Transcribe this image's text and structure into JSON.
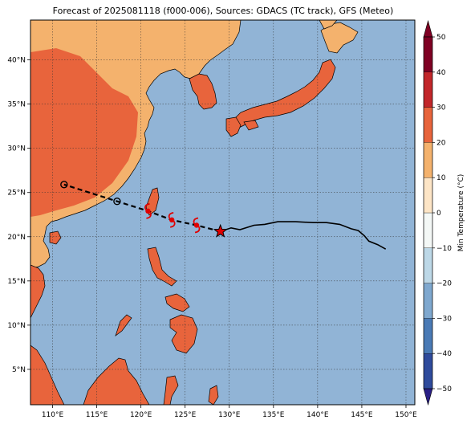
{
  "title": "Forecast of 2025081118 (f000-006), Sources: GDACS (TC track), GFS (Meteo)",
  "map": {
    "lon_range": [
      107.5,
      151.0
    ],
    "lat_range": [
      1.0,
      44.5
    ],
    "lon_ticks": [
      "110°E",
      "115°E",
      "120°E",
      "125°E",
      "130°E",
      "135°E",
      "140°E",
      "145°E",
      "150°E"
    ],
    "lat_ticks": [
      "5°N",
      "10°N",
      "15°N",
      "20°N",
      "25°N",
      "30°N",
      "35°N",
      "40°N"
    ],
    "ocean_color": "#91b4d6",
    "gridlines": true
  },
  "colorbar": {
    "label": "Min Temperature (°C)",
    "ticks": [
      "50",
      "40",
      "30",
      "20",
      "10",
      "0",
      "−10",
      "−20",
      "−30",
      "−40",
      "−50"
    ],
    "colors": [
      "#2a1f86",
      "#2f4b9c",
      "#4a7ab5",
      "#7fa8cf",
      "#bdd8e7",
      "#f4f8f6",
      "#fde5c6",
      "#f4b26d",
      "#e8643c",
      "#c2262a",
      "#7f0023"
    ]
  },
  "track": {
    "past": [
      [
        129.0,
        20.6
      ],
      [
        130.2,
        21.0
      ],
      [
        131.2,
        20.8
      ],
      [
        132.8,
        21.3
      ],
      [
        134.0,
        21.4
      ],
      [
        135.5,
        21.7
      ],
      [
        137.5,
        21.7
      ],
      [
        139.5,
        21.6
      ],
      [
        141.0,
        21.6
      ],
      [
        142.5,
        21.4
      ],
      [
        143.8,
        20.9
      ],
      [
        144.6,
        20.7
      ],
      [
        145.3,
        20.1
      ],
      [
        145.8,
        19.5
      ],
      [
        146.8,
        19.1
      ],
      [
        147.7,
        18.6
      ]
    ],
    "forecast": [
      [
        129.0,
        20.6
      ],
      [
        126.3,
        21.3
      ],
      [
        123.5,
        21.9
      ],
      [
        120.8,
        22.9
      ],
      [
        117.3,
        24.0
      ],
      [
        111.3,
        25.9
      ]
    ],
    "current": [
      129.0,
      20.6
    ],
    "storm_symbols": [
      [
        126.3,
        21.3
      ],
      [
        123.5,
        21.9
      ],
      [
        120.8,
        22.9
      ]
    ],
    "open_circles": [
      [
        117.3,
        24.0
      ],
      [
        111.3,
        25.9
      ]
    ]
  }
}
